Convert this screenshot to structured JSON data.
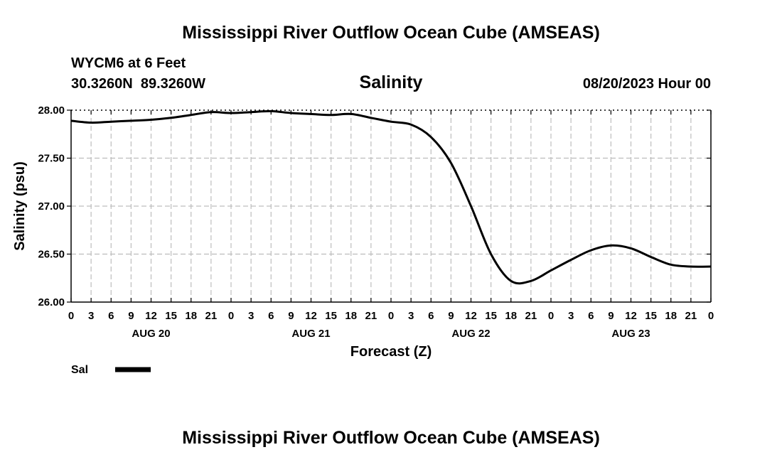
{
  "header": {
    "title": "Mississippi River Outflow Ocean Cube (AMSEAS)",
    "station": "WYCM6 at 6 Feet",
    "coords": "30.3260N  89.3260W",
    "datetime": "08/20/2023 Hour 00",
    "footer_title": "Mississippi River Outflow Ocean Cube (AMSEAS)"
  },
  "chart_data": {
    "type": "line",
    "title": "Salinity",
    "xlabel": "Forecast (Z)",
    "ylabel": "Salinity (psu)",
    "ylim": [
      26.0,
      28.0
    ],
    "xlim": [
      0,
      96
    ],
    "y_ticks": [
      "26.00",
      "26.50",
      "27.00",
      "27.50",
      "28.00"
    ],
    "y_tick_values": [
      26.0,
      26.5,
      27.0,
      27.5,
      28.0
    ],
    "x_tick_labels": [
      "0",
      "3",
      "6",
      "9",
      "12",
      "15",
      "18",
      "21",
      "0",
      "3",
      "6",
      "9",
      "12",
      "15",
      "18",
      "21",
      "0",
      "3",
      "6",
      "9",
      "12",
      "15",
      "18",
      "21",
      "0",
      "3",
      "6",
      "9",
      "12",
      "15",
      "18",
      "21",
      "0"
    ],
    "x_tick_hours": [
      0,
      3,
      6,
      9,
      12,
      15,
      18,
      21,
      24,
      27,
      30,
      33,
      36,
      39,
      42,
      45,
      48,
      51,
      54,
      57,
      60,
      63,
      66,
      69,
      72,
      75,
      78,
      81,
      84,
      87,
      90,
      93,
      96
    ],
    "day_labels": [
      {
        "label": "AUG 20",
        "hour": 12
      },
      {
        "label": "AUG 21",
        "hour": 36
      },
      {
        "label": "AUG 22",
        "hour": 60
      },
      {
        "label": "AUG 23",
        "hour": 84
      }
    ],
    "grid": true,
    "series": [
      {
        "name": "Sal",
        "x": [
          0,
          3,
          6,
          9,
          12,
          15,
          18,
          21,
          24,
          27,
          30,
          33,
          36,
          39,
          42,
          45,
          48,
          51,
          54,
          57,
          60,
          63,
          66,
          69,
          72,
          75,
          78,
          81,
          84,
          87,
          90,
          93,
          96
        ],
        "values": [
          27.89,
          27.87,
          27.88,
          27.89,
          27.9,
          27.92,
          27.95,
          27.98,
          27.97,
          27.98,
          27.99,
          27.97,
          27.96,
          27.95,
          27.96,
          27.92,
          27.88,
          27.85,
          27.72,
          27.45,
          27.0,
          26.5,
          26.22,
          26.22,
          26.33,
          26.44,
          26.54,
          26.59,
          26.56,
          26.47,
          26.39,
          26.37,
          26.37
        ]
      }
    ],
    "legend": {
      "label": "Sal",
      "placement": "bottom-left"
    }
  }
}
